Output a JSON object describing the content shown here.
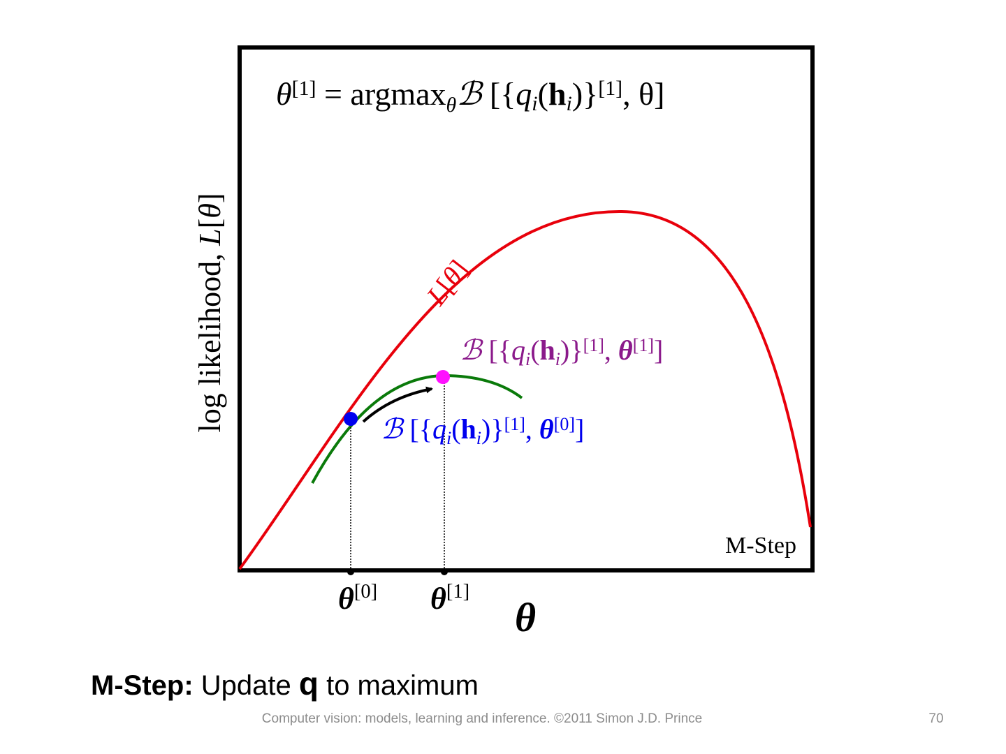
{
  "figure": {
    "equation": [
      "θ",
      "[1]",
      " = argmax",
      "θ",
      "ℬ",
      " [{",
      "q",
      "i",
      "(",
      "h",
      "i",
      ")}",
      "[1]",
      ", θ]"
    ],
    "y_label": [
      "log likelihood, ",
      "L",
      "[",
      "θ",
      "]"
    ],
    "curve_label": [
      "L",
      "[",
      "θ",
      "]"
    ],
    "bound_new": [
      "ℬ",
      " [{",
      "q",
      "i",
      "(",
      "h",
      "i",
      ")}",
      "[1]",
      ", ",
      "θ",
      "[1]",
      "]"
    ],
    "bound_old": [
      "ℬ",
      " [{",
      "q",
      "i",
      "(",
      "h",
      "i",
      ")}",
      "[1]",
      ", ",
      "θ",
      "[0]",
      "]"
    ],
    "step_label": "M-Step",
    "x_ticks": [
      [
        "θ",
        "[0]"
      ],
      [
        "θ",
        "[1]"
      ]
    ],
    "x_label": "θ"
  },
  "caption": {
    "bold": "M-Step:",
    "text1": " Update ",
    "symbol": "q",
    "text2": " to maximum"
  },
  "footer": {
    "text": "Computer vision: models, learning and inference.  ©2011 Simon J.D. Prince",
    "page": "70"
  }
}
